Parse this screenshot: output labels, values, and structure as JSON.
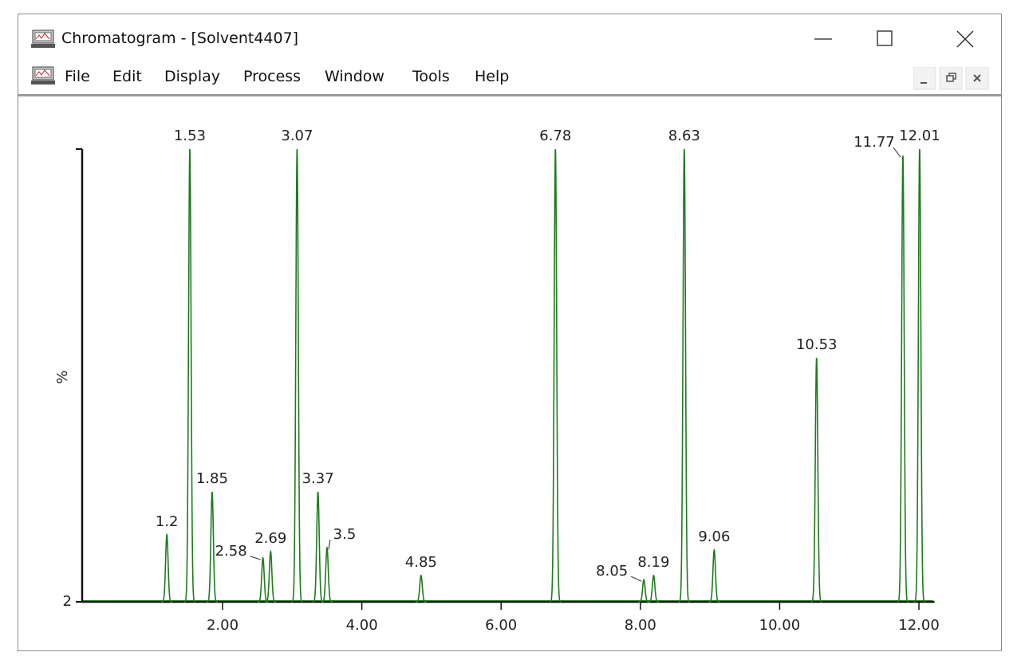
{
  "window": {
    "title": "Chromatogram - [Solvent4407]"
  },
  "menu": {
    "items": [
      "File",
      "Edit",
      "Display",
      "Process",
      "Window",
      "Tools",
      "Help"
    ]
  },
  "chart_data": {
    "type": "peaks",
    "y_label": "%",
    "x": [
      1.2,
      1.53,
      1.85,
      2.58,
      2.69,
      3.07,
      3.37,
      3.5,
      4.85,
      6.78,
      8.05,
      8.19,
      8.63,
      9.06,
      10.53,
      11.77,
      12.01
    ],
    "values": [
      16.5,
      100,
      25.8,
      11.5,
      12.9,
      100,
      25.8,
      13.7,
      7.7,
      100,
      6.8,
      7.7,
      100,
      13.2,
      54.8,
      98.6,
      100
    ],
    "color": "#1f7a1f",
    "xlim": [
      0,
      12.2
    ],
    "xticks": [
      {
        "value": 2,
        "label": "2.00"
      },
      {
        "value": 4,
        "label": "4.00"
      },
      {
        "value": 6,
        "label": "6.00"
      },
      {
        "value": 8,
        "label": "8.00"
      },
      {
        "value": 10,
        "label": "10.00"
      },
      {
        "value": 12,
        "label": "12.00"
      }
    ],
    "ylim": [
      2,
      100
    ],
    "yticks": [
      2
    ]
  }
}
